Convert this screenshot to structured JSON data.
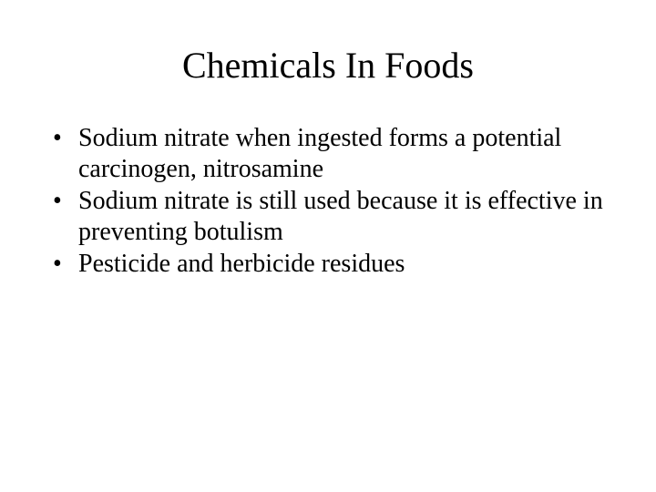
{
  "slide": {
    "title": "Chemicals In Foods",
    "bullets": [
      "Sodium nitrate when ingested forms a potential carcinogen, nitrosamine",
      "Sodium nitrate is still used because it is effective in preventing botulism",
      "Pesticide and herbicide residues"
    ]
  },
  "style": {
    "background_color": "#ffffff",
    "text_color": "#000000",
    "title_fontsize": 40,
    "body_fontsize": 28,
    "font_family": "Times New Roman"
  }
}
